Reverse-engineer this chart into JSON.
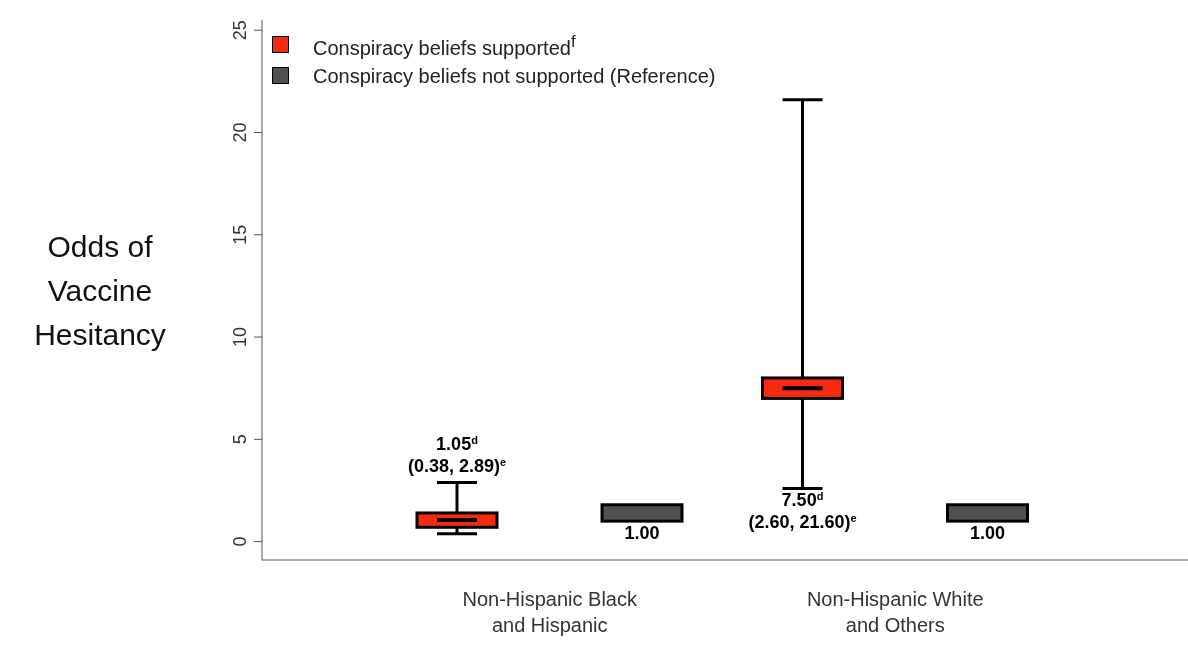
{
  "chart_data": {
    "type": "box",
    "ylabel": "Odds of Vaccine Hesitancy",
    "categories": [
      "Non-Hispanic Black and Hispanic",
      "Non-Hispanic White and Others"
    ],
    "series": [
      {
        "name": "Conspiracy beliefs supported$^{f}$",
        "color": "#f52a0f",
        "boxes": [
          {
            "low": 0.38,
            "q1": 0.7,
            "median": 1.05,
            "q3": 1.4,
            "high": 2.89
          },
          {
            "low": 2.6,
            "q1": 7.0,
            "median": 7.5,
            "q3": 8.0,
            "high": 21.6
          }
        ],
        "value_labels": [
          "1.05$^{d}$\n(0.38, 2.89)$^{e}$",
          "7.50$^{d}$\n(2.60, 21.60)$^{e}$"
        ]
      },
      {
        "name": "Conspiracy beliefs not supported (Reference)",
        "color": "#505050",
        "boxes": [
          {
            "low": 1.0,
            "q1": 1.0,
            "median": 1.0,
            "q3": 1.8,
            "high": 1.8
          },
          {
            "low": 1.0,
            "q1": 1.0,
            "median": 1.0,
            "q3": 1.8,
            "high": 1.8
          }
        ],
        "value_labels": [
          "1.00",
          "1.00"
        ]
      }
    ],
    "ylim": [
      -0.9,
      25.5
    ],
    "yticks": [
      0,
      5,
      10,
      15,
      20,
      25
    ],
    "grid": false,
    "legend": "top left"
  }
}
